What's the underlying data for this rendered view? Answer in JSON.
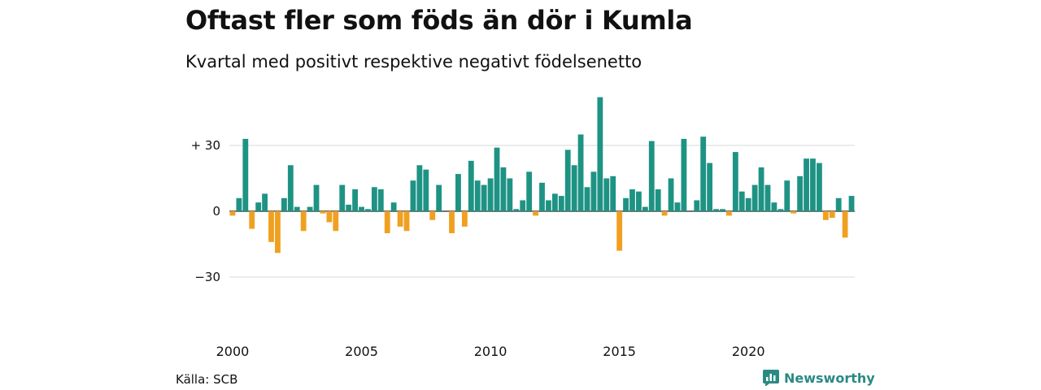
{
  "title": "Oftast fler som föds än dör i Kumla",
  "subtitle": "Kvartal med positivt respektive negativt födelsenetto",
  "source": "Källa: SCB",
  "brand": {
    "name": "Newsworthy",
    "icon": "newsworthy-logo-icon",
    "color": "#2a8a82"
  },
  "colors": {
    "positive": "#1e9384",
    "negative": "#f0a020",
    "grid": "#d9d9d9",
    "zero": "#222222"
  },
  "chart_data": {
    "type": "bar",
    "x_start": "2000 Q1",
    "frequency": "quarterly",
    "values": [
      -2,
      6,
      33,
      -8,
      4,
      8,
      -14,
      -19,
      6,
      21,
      2,
      -9,
      2,
      12,
      -1,
      -5,
      -9,
      12,
      3,
      10,
      2,
      1,
      11,
      10,
      -10,
      4,
      -7,
      -9,
      14,
      21,
      19,
      -4,
      12,
      0,
      -10,
      17,
      -7,
      23,
      14,
      12,
      15,
      29,
      20,
      15,
      1,
      5,
      18,
      -2,
      13,
      5,
      8,
      7,
      28,
      21,
      35,
      11,
      18,
      52,
      15,
      16,
      -18,
      6,
      10,
      9,
      2,
      32,
      10,
      -2,
      15,
      4,
      33,
      0,
      5,
      34,
      22,
      1,
      1,
      -2,
      27,
      9,
      6,
      12,
      20,
      12,
      4,
      1,
      14,
      -1,
      16,
      24,
      24,
      22,
      -4,
      -3,
      6,
      -12,
      7
    ],
    "xlabel": "",
    "ylabel": "",
    "x_ticks": [
      "2000",
      "2005",
      "2010",
      "2015",
      "2020"
    ],
    "y_ticks": [
      30,
      0,
      -30
    ],
    "y_tick_labels": [
      "+ 30",
      "0",
      "−30"
    ],
    "ylim": [
      -45,
      55
    ],
    "grid": true,
    "legend": "none"
  }
}
